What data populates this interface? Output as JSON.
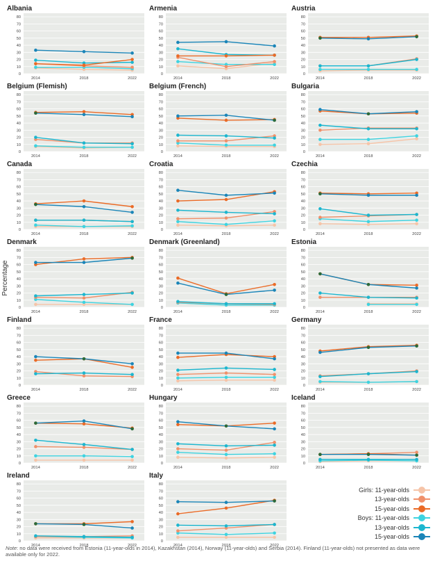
{
  "yaxis_label": "Percentage",
  "legend": {
    "group_girls": "Girls:",
    "group_boys": "Boys:",
    "items": [
      {
        "key": "g11",
        "prefix": "Girls: ",
        "label": "11-year-olds"
      },
      {
        "key": "g13",
        "prefix": "",
        "label": "13-year-olds"
      },
      {
        "key": "g15",
        "prefix": "",
        "label": "15-year-olds"
      },
      {
        "key": "b11",
        "prefix": "Boys: ",
        "label": "11-year-olds"
      },
      {
        "key": "b13",
        "prefix": "",
        "label": "13-year-olds"
      },
      {
        "key": "b15",
        "prefix": "",
        "label": "15-year-olds"
      }
    ]
  },
  "colors": {
    "g11": "#f6c4a8",
    "g13": "#f0906a",
    "g15": "#ea6a26",
    "b11": "#3dd3e0",
    "b13": "#1bb6cf",
    "b15": "#1a85b8",
    "overlap": "#2a6a3a",
    "panel_bg": "#e9ebe8",
    "grid": "#ffffff"
  },
  "note": {
    "label": "Note",
    "text": ": no data were received from Estonia (11-year-olds in 2014), Kazakhstan (2014), Norway (11-year-olds) and Serbia (2014). Finland (11-year-olds) not presented as data were available only for 2022."
  },
  "chart_data": {
    "type": "line",
    "x": [
      "2014",
      "2018",
      "2022"
    ],
    "yticks": [
      0,
      10,
      20,
      30,
      40,
      50,
      60,
      70,
      80
    ],
    "ylim": [
      0,
      85
    ],
    "ylabel": "Percentage",
    "series_keys": [
      "g11",
      "g13",
      "g15",
      "b11",
      "b13",
      "b15"
    ],
    "panels": [
      {
        "title": "Albania",
        "values": {
          "g11": [
            8,
            6,
            5
          ],
          "g13": [
            14,
            11,
            9
          ],
          "g15": [
            14,
            12,
            20
          ],
          "b11": [
            9,
            9,
            7
          ],
          "b13": [
            19,
            15,
            16
          ],
          "b15": [
            33,
            31,
            29
          ]
        }
      },
      {
        "title": "Armenia",
        "values": {
          "g11": [
            11,
            7,
            15
          ],
          "g13": [
            23,
            10,
            17
          ],
          "g15": [
            25,
            25,
            26
          ],
          "b11": [
            17,
            13,
            13
          ],
          "b13": [
            35,
            27,
            26
          ],
          "b15": [
            44,
            45,
            39
          ]
        }
      },
      {
        "title": "Austria",
        "values": {
          "g11": [
            4,
            5,
            5
          ],
          "g13": [
            11,
            11,
            21
          ],
          "g15": [
            51,
            51,
            53
          ],
          "b11": [
            6,
            6,
            6
          ],
          "b13": [
            11,
            11,
            20
          ],
          "b15": [
            50,
            49,
            52
          ]
        }
      },
      {
        "title": "Belgium (Flemish)",
        "values": {
          "g11": [
            7,
            5,
            6
          ],
          "g13": [
            17,
            12,
            12
          ],
          "g15": [
            55,
            56,
            52
          ],
          "b11": [
            8,
            6,
            6
          ],
          "b13": [
            20,
            12,
            11
          ],
          "b15": [
            54,
            52,
            49
          ]
        }
      },
      {
        "title": "Belgium (French)",
        "values": {
          "g11": [
            8,
            7,
            7
          ],
          "g13": [
            15,
            15,
            22
          ],
          "g15": [
            47,
            44,
            45
          ],
          "b11": [
            12,
            9,
            9
          ],
          "b13": [
            23,
            22,
            19
          ],
          "b15": [
            50,
            51,
            44
          ]
        }
      },
      {
        "title": "Bulgaria",
        "values": {
          "g11": [
            10,
            11,
            18
          ],
          "g13": [
            30,
            33,
            33
          ],
          "g15": [
            57,
            53,
            54
          ],
          "b11": [
            17,
            17,
            22
          ],
          "b13": [
            37,
            32,
            32
          ],
          "b15": [
            59,
            53,
            56
          ]
        }
      },
      {
        "title": "Canada",
        "values": {
          "g11": [
            4,
            4,
            4
          ],
          "g13": [
            13,
            13,
            11
          ],
          "g15": [
            36,
            40,
            32
          ],
          "b11": [
            6,
            4,
            5
          ],
          "b13": [
            13,
            13,
            11
          ],
          "b15": [
            35,
            32,
            24
          ]
        }
      },
      {
        "title": "Croatia",
        "values": {
          "g11": [
            6,
            5,
            6
          ],
          "g13": [
            15,
            16,
            25
          ],
          "g15": [
            40,
            42,
            53
          ],
          "b11": [
            11,
            7,
            12
          ],
          "b13": [
            27,
            24,
            22
          ],
          "b15": [
            55,
            48,
            51
          ]
        }
      },
      {
        "title": "Czechia",
        "values": {
          "g11": [
            8,
            7,
            8
          ],
          "g13": [
            17,
            19,
            21
          ],
          "g15": [
            51,
            50,
            51
          ],
          "b11": [
            15,
            11,
            13
          ],
          "b13": [
            29,
            20,
            21
          ],
          "b15": [
            50,
            48,
            48
          ]
        }
      },
      {
        "title": "Denmark",
        "values": {
          "g11": [
            4,
            4,
            4
          ],
          "g13": [
            14,
            13,
            21
          ],
          "g15": [
            60,
            68,
            70
          ],
          "b11": [
            11,
            7,
            4
          ],
          "b13": [
            16,
            18,
            20
          ],
          "b15": [
            63,
            63,
            69
          ]
        }
      },
      {
        "title": "Denmark (Greenland)",
        "values": {
          "g11": [
            6,
            3,
            4
          ],
          "g13": [
            7,
            5,
            4
          ],
          "g15": [
            41,
            19,
            32
          ],
          "b11": [
            6,
            3,
            3
          ],
          "b13": [
            8,
            5,
            5
          ],
          "b15": [
            34,
            18,
            24
          ]
        }
      },
      {
        "title": "Estonia",
        "values": {
          "g11": [
            null,
            5,
            5
          ],
          "g13": [
            14,
            14,
            14
          ],
          "g15": [
            47,
            32,
            31
          ],
          "b11": [
            null,
            4,
            4
          ],
          "b13": [
            20,
            14,
            13
          ],
          "b15": [
            47,
            32,
            27
          ]
        }
      },
      {
        "title": "Finland",
        "values": {
          "g13": [
            19,
            13,
            12
          ],
          "g15": [
            35,
            37,
            25
          ],
          "b13": [
            16,
            17,
            15
          ],
          "b15": [
            40,
            37,
            30
          ]
        }
      },
      {
        "title": "France",
        "values": {
          "g11": [
            6,
            7,
            7
          ],
          "g13": [
            15,
            17,
            15
          ],
          "g15": [
            39,
            43,
            40
          ],
          "b11": [
            10,
            11,
            11
          ],
          "b13": [
            21,
            24,
            22
          ],
          "b15": [
            45,
            45,
            37
          ]
        }
      },
      {
        "title": "Germany",
        "values": {
          "g11": [
            4,
            4,
            5
          ],
          "g13": [
            13,
            16,
            20
          ],
          "g15": [
            48,
            54,
            56
          ],
          "b11": [
            5,
            4,
            5
          ],
          "b13": [
            12,
            16,
            19
          ],
          "b15": [
            46,
            53,
            55
          ]
        }
      },
      {
        "title": "Greece",
        "values": {
          "g11": [
            4,
            4,
            4
          ],
          "g13": [
            23,
            22,
            19
          ],
          "g15": [
            56,
            55,
            49
          ],
          "b11": [
            10,
            10,
            9
          ],
          "b13": [
            32,
            26,
            19
          ],
          "b15": [
            56,
            59,
            48
          ]
        }
      },
      {
        "title": "Hungary",
        "values": {
          "g11": [
            8,
            7,
            8
          ],
          "g13": [
            20,
            18,
            29
          ],
          "g15": [
            54,
            52,
            56
          ],
          "b11": [
            15,
            12,
            13
          ],
          "b13": [
            27,
            24,
            25
          ],
          "b15": [
            58,
            52,
            48
          ]
        }
      },
      {
        "title": "Iceland",
        "values": {
          "g11": [
            2,
            3,
            3
          ],
          "g13": [
            12,
            13,
            15
          ],
          "g15": [
            12,
            13,
            11
          ],
          "b11": [
            3,
            4,
            3
          ],
          "b13": [
            5,
            5,
            5
          ],
          "b15": [
            12,
            12,
            11
          ]
        }
      },
      {
        "title": "Ireland",
        "values": {
          "g11": [
            4,
            4,
            4
          ],
          "g13": [
            6,
            6,
            7
          ],
          "g15": [
            24,
            24,
            27
          ],
          "b11": [
            6,
            5,
            4
          ],
          "b13": [
            7,
            6,
            5
          ],
          "b15": [
            24,
            23,
            18
          ]
        }
      },
      {
        "title": "Italy",
        "values": {
          "g11": [
            5,
            5,
            5
          ],
          "g13": [
            14,
            18,
            23
          ],
          "g15": [
            38,
            46,
            57
          ],
          "b11": [
            11,
            9,
            11
          ],
          "b13": [
            22,
            21,
            23
          ],
          "b15": [
            55,
            54,
            56
          ]
        }
      }
    ]
  }
}
